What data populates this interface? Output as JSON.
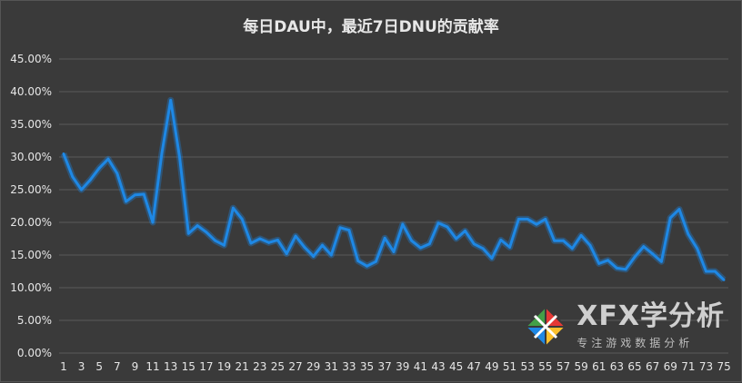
{
  "chart_data": {
    "type": "line",
    "title": "每日DAU中，最近7日DNU的贡献率",
    "xlabel": "",
    "ylabel": "",
    "ylim": [
      0,
      0.45
    ],
    "yticks": [
      "0.00%",
      "5.00%",
      "10.00%",
      "15.00%",
      "20.00%",
      "25.00%",
      "30.00%",
      "35.00%",
      "40.00%",
      "45.00%"
    ],
    "xtick_labels": [
      "1",
      "3",
      "5",
      "7",
      "9",
      "11",
      "13",
      "15",
      "17",
      "19",
      "21",
      "23",
      "25",
      "27",
      "29",
      "31",
      "33",
      "35",
      "37",
      "39",
      "41",
      "43",
      "45",
      "47",
      "49",
      "51",
      "53",
      "55",
      "57",
      "59",
      "61",
      "63",
      "65",
      "67",
      "69",
      "71",
      "73",
      "75"
    ],
    "grid": true,
    "line_color": "#1e88e5",
    "x": [
      1,
      2,
      3,
      4,
      5,
      6,
      7,
      8,
      9,
      10,
      11,
      12,
      13,
      14,
      15,
      16,
      17,
      18,
      19,
      20,
      21,
      22,
      23,
      24,
      25,
      26,
      27,
      28,
      29,
      30,
      31,
      32,
      33,
      34,
      35,
      36,
      37,
      38,
      39,
      40,
      41,
      42,
      43,
      44,
      45,
      46,
      47,
      48,
      49,
      50,
      51,
      52,
      53,
      54,
      55,
      56,
      57,
      58,
      59,
      60,
      61,
      62,
      63,
      64,
      65,
      66,
      67,
      68,
      69,
      70,
      71,
      72,
      73,
      74,
      75
    ],
    "values": [
      0.305,
      0.27,
      0.25,
      0.265,
      0.283,
      0.297,
      0.275,
      0.232,
      0.242,
      0.243,
      0.2,
      0.305,
      0.387,
      0.3,
      0.183,
      0.195,
      0.185,
      0.172,
      0.165,
      0.222,
      0.205,
      0.168,
      0.175,
      0.169,
      0.173,
      0.152,
      0.179,
      0.162,
      0.148,
      0.165,
      0.15,
      0.192,
      0.188,
      0.141,
      0.133,
      0.14,
      0.176,
      0.155,
      0.197,
      0.172,
      0.161,
      0.167,
      0.199,
      0.193,
      0.175,
      0.187,
      0.167,
      0.16,
      0.145,
      0.173,
      0.162,
      0.205,
      0.205,
      0.197,
      0.205,
      0.172,
      0.172,
      0.16,
      0.18,
      0.165,
      0.137,
      0.142,
      0.13,
      0.128,
      0.147,
      0.163,
      0.152,
      0.14,
      0.207,
      0.22,
      0.182,
      0.16,
      0.125,
      0.125,
      0.112
    ]
  },
  "watermark": {
    "brand": "XFX学分析",
    "slogan": "专注游戏数据分析",
    "logo_colors": [
      "#e53935",
      "#43a047",
      "#fbc02d",
      "#1e88e5"
    ]
  }
}
